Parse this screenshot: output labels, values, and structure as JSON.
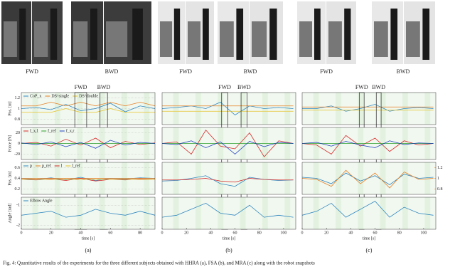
{
  "figure": {
    "photo_labels": [
      [
        "FWD",
        "BWD"
      ],
      [
        "FWD",
        "BWD"
      ],
      [
        "FWD",
        "BWD"
      ]
    ],
    "panel_labels": [
      "(a)",
      "(b)",
      "(c)"
    ],
    "caption": "Fig. 4: Quantitative results of the experiments for the three different subjects obtained with HHRA (a), FSA (b), and MRA (c) along with the robot snapshots"
  },
  "chart_data": [
    {
      "type": "line",
      "ylabel": "Pos. [m]",
      "xlim": [
        0,
        90
      ],
      "ylim": [
        0.7,
        1.3
      ],
      "yticks": [
        0.8,
        1,
        1.2
      ],
      "legend": "upper left",
      "phases": [
        {
          "label": "FWD",
          "range": [
            36,
            44
          ]
        },
        {
          "label": "BWD",
          "range": [
            53,
            58
          ]
        }
      ],
      "x": [
        0,
        10,
        20,
        30,
        40,
        50,
        60,
        70,
        80,
        90
      ],
      "series": [
        {
          "name": "CoP_x",
          "color": "#2e86c1",
          "values": [
            1.0,
            1.02,
            0.98,
            1.08,
            0.96,
            1.0,
            1.1,
            0.94,
            1.05,
            1.0
          ]
        },
        {
          "name": "DS^single",
          "color": "#e67e22",
          "values": [
            1.05,
            1.05,
            1.12,
            1.05,
            1.12,
            1.05,
            1.12,
            1.05,
            1.12,
            1.05
          ]
        },
        {
          "name": "DS^double",
          "color": "#e6c229",
          "values": [
            0.93,
            0.93,
            0.93,
            1.0,
            0.93,
            0.93,
            1.0,
            0.93,
            0.93,
            0.93
          ]
        }
      ]
    },
    {
      "type": "line",
      "ylabel": "Force [N]",
      "xlim": [
        0,
        90
      ],
      "ylim": [
        -30,
        30
      ],
      "yticks": [
        -20,
        0,
        20
      ],
      "legend": "upper left",
      "x": [
        0,
        10,
        20,
        30,
        40,
        50,
        60,
        70,
        80,
        90
      ],
      "series": [
        {
          "name": "f_x,l",
          "color": "#d62728",
          "values": [
            0,
            2,
            -5,
            8,
            -3,
            10,
            -8,
            4,
            -2,
            1
          ]
        },
        {
          "name": "f_ref",
          "color": "#2ca02c",
          "values": [
            0,
            0,
            0,
            0,
            0,
            0,
            0,
            0,
            0,
            0
          ]
        },
        {
          "name": "f_x,r",
          "color": "#1f3fbf",
          "values": [
            1,
            -2,
            3,
            -6,
            2,
            -9,
            6,
            -3,
            2,
            0
          ]
        }
      ]
    },
    {
      "type": "line",
      "ylabel": "Pos. [m]",
      "xlim": [
        0,
        90
      ],
      "ylim": [
        0.1,
        0.7
      ],
      "yticks": [
        0.2,
        0.4,
        0.6
      ],
      "legend": "upper left",
      "x": [
        0,
        10,
        20,
        30,
        40,
        50,
        60,
        70,
        80,
        90
      ],
      "series": [
        {
          "name": "p",
          "color": "#2e86c1",
          "values": [
            0.4,
            0.38,
            0.41,
            0.37,
            0.42,
            0.36,
            0.4,
            0.39,
            0.41,
            0.4
          ]
        },
        {
          "name": "p_ref",
          "color": "#e67e22",
          "values": [
            0.4,
            0.4,
            0.4,
            0.4,
            0.4,
            0.4,
            0.4,
            0.4,
            0.4,
            0.4
          ]
        },
        {
          "name": "l",
          "color": "#d62728",
          "values": [
            0.38,
            0.37,
            0.39,
            0.36,
            0.4,
            0.35,
            0.38,
            0.37,
            0.39,
            0.38
          ]
        },
        {
          "name": "l_ref",
          "color": "#e6c229",
          "values": [
            0.38,
            0.38,
            0.38,
            0.38,
            0.38,
            0.38,
            0.38,
            0.38,
            0.38,
            0.38
          ]
        }
      ]
    },
    {
      "type": "line",
      "ylabel": "Angle [rad]",
      "xlabel": "time [s]",
      "xlim": [
        0,
        90
      ],
      "xticks": [
        0,
        20,
        40,
        60,
        80
      ],
      "ylim": [
        -2.2,
        -0.6
      ],
      "yticks": [
        -2,
        -1
      ],
      "legend": "upper left",
      "x": [
        0,
        10,
        20,
        30,
        40,
        50,
        60,
        70,
        80,
        90
      ],
      "series": [
        {
          "name": "Elbow Angle",
          "color": "#2e86c1",
          "values": [
            -1.5,
            -1.4,
            -1.3,
            -1.6,
            -1.5,
            -1.2,
            -1.4,
            -1.5,
            -1.3,
            -1.5
          ]
        }
      ]
    },
    {
      "type": "line",
      "xlim": [
        0,
        110
      ],
      "ylim": [
        0.7,
        1.3
      ],
      "phases": [
        {
          "label": "FWD",
          "range": [
            49,
            54
          ]
        },
        {
          "label": "BWD",
          "range": [
            65,
            70
          ]
        }
      ],
      "x": [
        0,
        12,
        24,
        36,
        48,
        60,
        72,
        84,
        96,
        108
      ],
      "series": [
        {
          "name": "CoP_x",
          "color": "#2e86c1",
          "values": [
            1.0,
            1.02,
            1.05,
            1.0,
            1.12,
            0.88,
            1.05,
            1.0,
            1.02,
            1.0
          ]
        },
        {
          "name": "DS^single",
          "color": "#e67e22",
          "values": [
            1.05,
            1.05,
            1.05,
            1.05,
            1.05,
            1.05,
            1.05,
            1.05,
            1.05,
            1.05
          ]
        },
        {
          "name": "DS^double",
          "color": "#e6c229",
          "values": [
            0.95,
            0.95,
            0.95,
            0.95,
            0.95,
            0.95,
            0.95,
            0.95,
            0.95,
            0.95
          ]
        }
      ]
    },
    {
      "type": "line",
      "xlim": [
        0,
        110
      ],
      "ylim": [
        -30,
        30
      ],
      "x": [
        0,
        12,
        24,
        36,
        48,
        60,
        72,
        84,
        96,
        108
      ],
      "series": [
        {
          "name": "f_x,l",
          "color": "#d62728",
          "values": [
            0,
            3,
            -20,
            25,
            -5,
            -10,
            20,
            -25,
            5,
            0
          ]
        },
        {
          "name": "f_ref",
          "color": "#2ca02c",
          "values": [
            0,
            0,
            0,
            0,
            0,
            0,
            0,
            0,
            0,
            0
          ]
        },
        {
          "name": "f_x,r",
          "color": "#1f3fbf",
          "values": [
            0,
            -2,
            5,
            -8,
            3,
            -20,
            4,
            -6,
            2,
            0
          ]
        }
      ]
    },
    {
      "type": "line",
      "xlim": [
        0,
        110
      ],
      "ylim": [
        0.1,
        0.7
      ],
      "x": [
        0,
        12,
        24,
        36,
        48,
        60,
        72,
        84,
        96,
        108
      ],
      "series": [
        {
          "name": "p",
          "color": "#2e86c1",
          "values": [
            0.35,
            0.36,
            0.4,
            0.45,
            0.3,
            0.25,
            0.42,
            0.38,
            0.36,
            0.37
          ]
        },
        {
          "name": "l",
          "color": "#d62728",
          "values": [
            0.37,
            0.37,
            0.38,
            0.4,
            0.35,
            0.33,
            0.4,
            0.38,
            0.37,
            0.37
          ]
        }
      ]
    },
    {
      "type": "line",
      "xlabel": "time [s]",
      "xlim": [
        0,
        110
      ],
      "xticks": [
        0,
        20,
        40,
        60,
        80,
        100
      ],
      "ylim": [
        -2.2,
        -0.6
      ],
      "x": [
        0,
        12,
        24,
        36,
        48,
        60,
        72,
        84,
        96,
        108
      ],
      "series": [
        {
          "name": "Elbow Angle",
          "color": "#2e86c1",
          "values": [
            -1.6,
            -1.5,
            -1.2,
            -0.9,
            -1.4,
            -1.5,
            -1.0,
            -1.6,
            -1.5,
            -1.6
          ]
        }
      ]
    },
    {
      "type": "line",
      "xlim": [
        0,
        110
      ],
      "ylim": [
        0.7,
        1.3
      ],
      "phases": [
        {
          "label": "FWD",
          "range": [
            47,
            51
          ]
        },
        {
          "label": "BWD",
          "range": [
            61,
            65
          ]
        }
      ],
      "x": [
        0,
        12,
        24,
        36,
        48,
        60,
        72,
        84,
        96,
        108
      ],
      "series": [
        {
          "name": "CoP_x",
          "color": "#2e86c1",
          "values": [
            1.0,
            1.0,
            1.05,
            0.95,
            1.0,
            1.08,
            0.95,
            1.0,
            1.02,
            1.0
          ]
        },
        {
          "name": "DS^single",
          "color": "#e67e22",
          "values": [
            1.03,
            1.03,
            1.03,
            1.03,
            1.03,
            1.03,
            1.03,
            1.03,
            1.03,
            1.03
          ]
        },
        {
          "name": "DS^double",
          "color": "#e6c229",
          "values": [
            0.97,
            0.97,
            0.97,
            0.97,
            0.97,
            0.97,
            0.97,
            0.97,
            0.97,
            0.97
          ]
        }
      ]
    },
    {
      "type": "line",
      "xlim": [
        0,
        110
      ],
      "ylim": [
        -30,
        30
      ],
      "x": [
        0,
        12,
        24,
        36,
        48,
        60,
        72,
        84,
        96,
        108
      ],
      "series": [
        {
          "name": "f_x,l",
          "color": "#d62728",
          "values": [
            0,
            -3,
            -20,
            15,
            -5,
            10,
            -15,
            5,
            -3,
            0
          ]
        },
        {
          "name": "f_ref",
          "color": "#2ca02c",
          "values": [
            0,
            0,
            0,
            0,
            0,
            0,
            0,
            0,
            0,
            0
          ]
        },
        {
          "name": "f_x,r",
          "color": "#1f3fbf",
          "values": [
            0,
            2,
            -5,
            4,
            -3,
            -8,
            5,
            -2,
            1,
            0
          ]
        }
      ]
    },
    {
      "type": "line",
      "xlim": [
        0,
        110
      ],
      "ylim": [
        0.1,
        0.7
      ],
      "y2lim": [
        0.7,
        1.3
      ],
      "y2ticks": [
        0.8,
        1,
        1.2
      ],
      "x": [
        0,
        12,
        24,
        36,
        48,
        60,
        72,
        84,
        96,
        108
      ],
      "series": [
        {
          "name": "p",
          "color": "#2e86c1",
          "values": [
            0.42,
            0.4,
            0.3,
            0.5,
            0.35,
            0.45,
            0.28,
            0.48,
            0.4,
            0.42
          ]
        },
        {
          "name": "l",
          "color": "#e67e22",
          "axis": "y2",
          "values": [
            1.0,
            0.98,
            0.85,
            1.15,
            0.9,
            1.1,
            0.82,
            1.12,
            0.98,
            1.0
          ]
        }
      ]
    },
    {
      "type": "line",
      "xlabel": "time [s]",
      "xlim": [
        0,
        110
      ],
      "xticks": [
        0,
        20,
        40,
        60,
        80,
        100
      ],
      "ylim": [
        -2.2,
        -0.6
      ],
      "x": [
        0,
        12,
        24,
        36,
        48,
        60,
        72,
        84,
        96,
        108
      ],
      "series": [
        {
          "name": "Elbow Angle",
          "color": "#2e86c1",
          "values": [
            -1.5,
            -1.3,
            -0.9,
            -1.6,
            -1.2,
            -0.8,
            -1.6,
            -1.1,
            -1.4,
            -1.5
          ]
        }
      ]
    }
  ]
}
